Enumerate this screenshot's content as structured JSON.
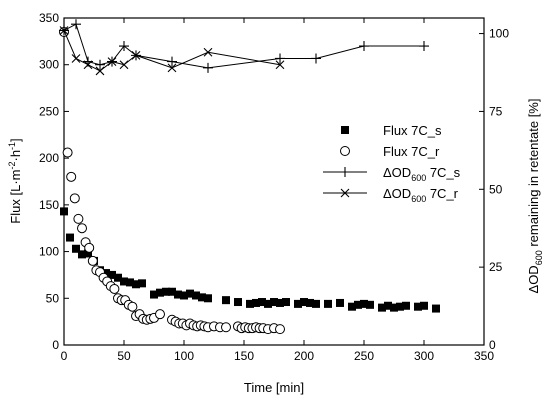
{
  "chart_data": {
    "type": "scatter",
    "xlabel": "Time [min]",
    "ylabel": {
      "pre": "Flux [L·m",
      "sup1": "-2",
      "mid": "·h",
      "sup2": "-1",
      "post": "]"
    },
    "y2label": {
      "pre": "ΔOD",
      "sub": "600",
      "post": " remaining in retentate [%]"
    },
    "xlim": [
      0,
      350
    ],
    "ylim": [
      0,
      350
    ],
    "y2lim": [
      0,
      105
    ],
    "xticks": [
      0,
      50,
      100,
      150,
      200,
      250,
      300,
      350
    ],
    "yticks": [
      0,
      50,
      100,
      150,
      200,
      250,
      300,
      350
    ],
    "y2ticks": [
      0,
      25,
      50,
      75,
      100
    ],
    "legend_position": "center-right",
    "series": [
      {
        "name": "Flux 7C_s",
        "axis": "left",
        "marker": "square-filled",
        "x": [
          0,
          5,
          10,
          15,
          20,
          25,
          30,
          35,
          40,
          45,
          50,
          55,
          60,
          65,
          75,
          80,
          85,
          90,
          95,
          100,
          105,
          110,
          115,
          120,
          135,
          145,
          155,
          160,
          165,
          170,
          175,
          180,
          185,
          195,
          200,
          205,
          210,
          220,
          230,
          240,
          245,
          250,
          255,
          265,
          270,
          275,
          280,
          285,
          295,
          300,
          310
        ],
        "y": [
          143,
          115,
          103,
          97,
          98,
          90,
          80,
          77,
          75,
          72,
          68,
          67,
          65,
          66,
          54,
          56,
          57,
          57,
          54,
          53,
          55,
          53,
          51,
          50,
          48,
          46,
          44,
          45,
          46,
          44,
          46,
          45,
          46,
          44,
          46,
          45,
          44,
          44,
          45,
          41,
          43,
          44,
          43,
          40,
          42,
          40,
          41,
          42,
          41,
          42,
          39
        ]
      },
      {
        "name": "Flux 7C_r",
        "axis": "left",
        "marker": "circle-open",
        "x": [
          0,
          3,
          6,
          9,
          12,
          15,
          18,
          21,
          24,
          27,
          30,
          33,
          36,
          39,
          42,
          45,
          48,
          51,
          54,
          57,
          60,
          63,
          66,
          69,
          72,
          75,
          80,
          90,
          93,
          96,
          99,
          102,
          105,
          108,
          111,
          114,
          117,
          120,
          125,
          130,
          135,
          145,
          148,
          151,
          154,
          157,
          160,
          163,
          166,
          170,
          175,
          180
        ],
        "y": [
          335,
          206,
          180,
          157,
          135,
          125,
          110,
          104,
          90,
          80,
          78,
          72,
          68,
          63,
          60,
          50,
          48,
          48,
          43,
          41,
          31,
          33,
          28,
          27,
          28,
          29,
          33,
          27,
          25,
          23,
          23,
          21,
          23,
          21,
          20,
          21,
          20,
          19,
          20,
          19,
          19,
          20,
          18,
          19,
          18,
          18,
          19,
          18,
          18,
          17,
          18,
          17
        ]
      },
      {
        "name": "ΔOD600 7C_s",
        "name_parts": {
          "pre": "ΔOD",
          "sub": "600",
          "post": " 7C_s"
        },
        "axis": "right",
        "marker": "plus",
        "x": [
          0,
          10,
          20,
          30,
          40,
          50,
          60,
          90,
          120,
          180,
          210,
          250,
          300
        ],
        "y": [
          101,
          103,
          91,
          90,
          91,
          96,
          93,
          91,
          89,
          92,
          92,
          96,
          96
        ]
      },
      {
        "name": "ΔOD600 7C_r",
        "name_parts": {
          "pre": "ΔOD",
          "sub": "600",
          "post": " 7C_r"
        },
        "axis": "right",
        "marker": "x",
        "x": [
          0,
          10,
          20,
          30,
          40,
          50,
          60,
          90,
          120,
          180
        ],
        "y": [
          101,
          92,
          90,
          88,
          91,
          90,
          93,
          89,
          94,
          90
        ]
      }
    ]
  }
}
